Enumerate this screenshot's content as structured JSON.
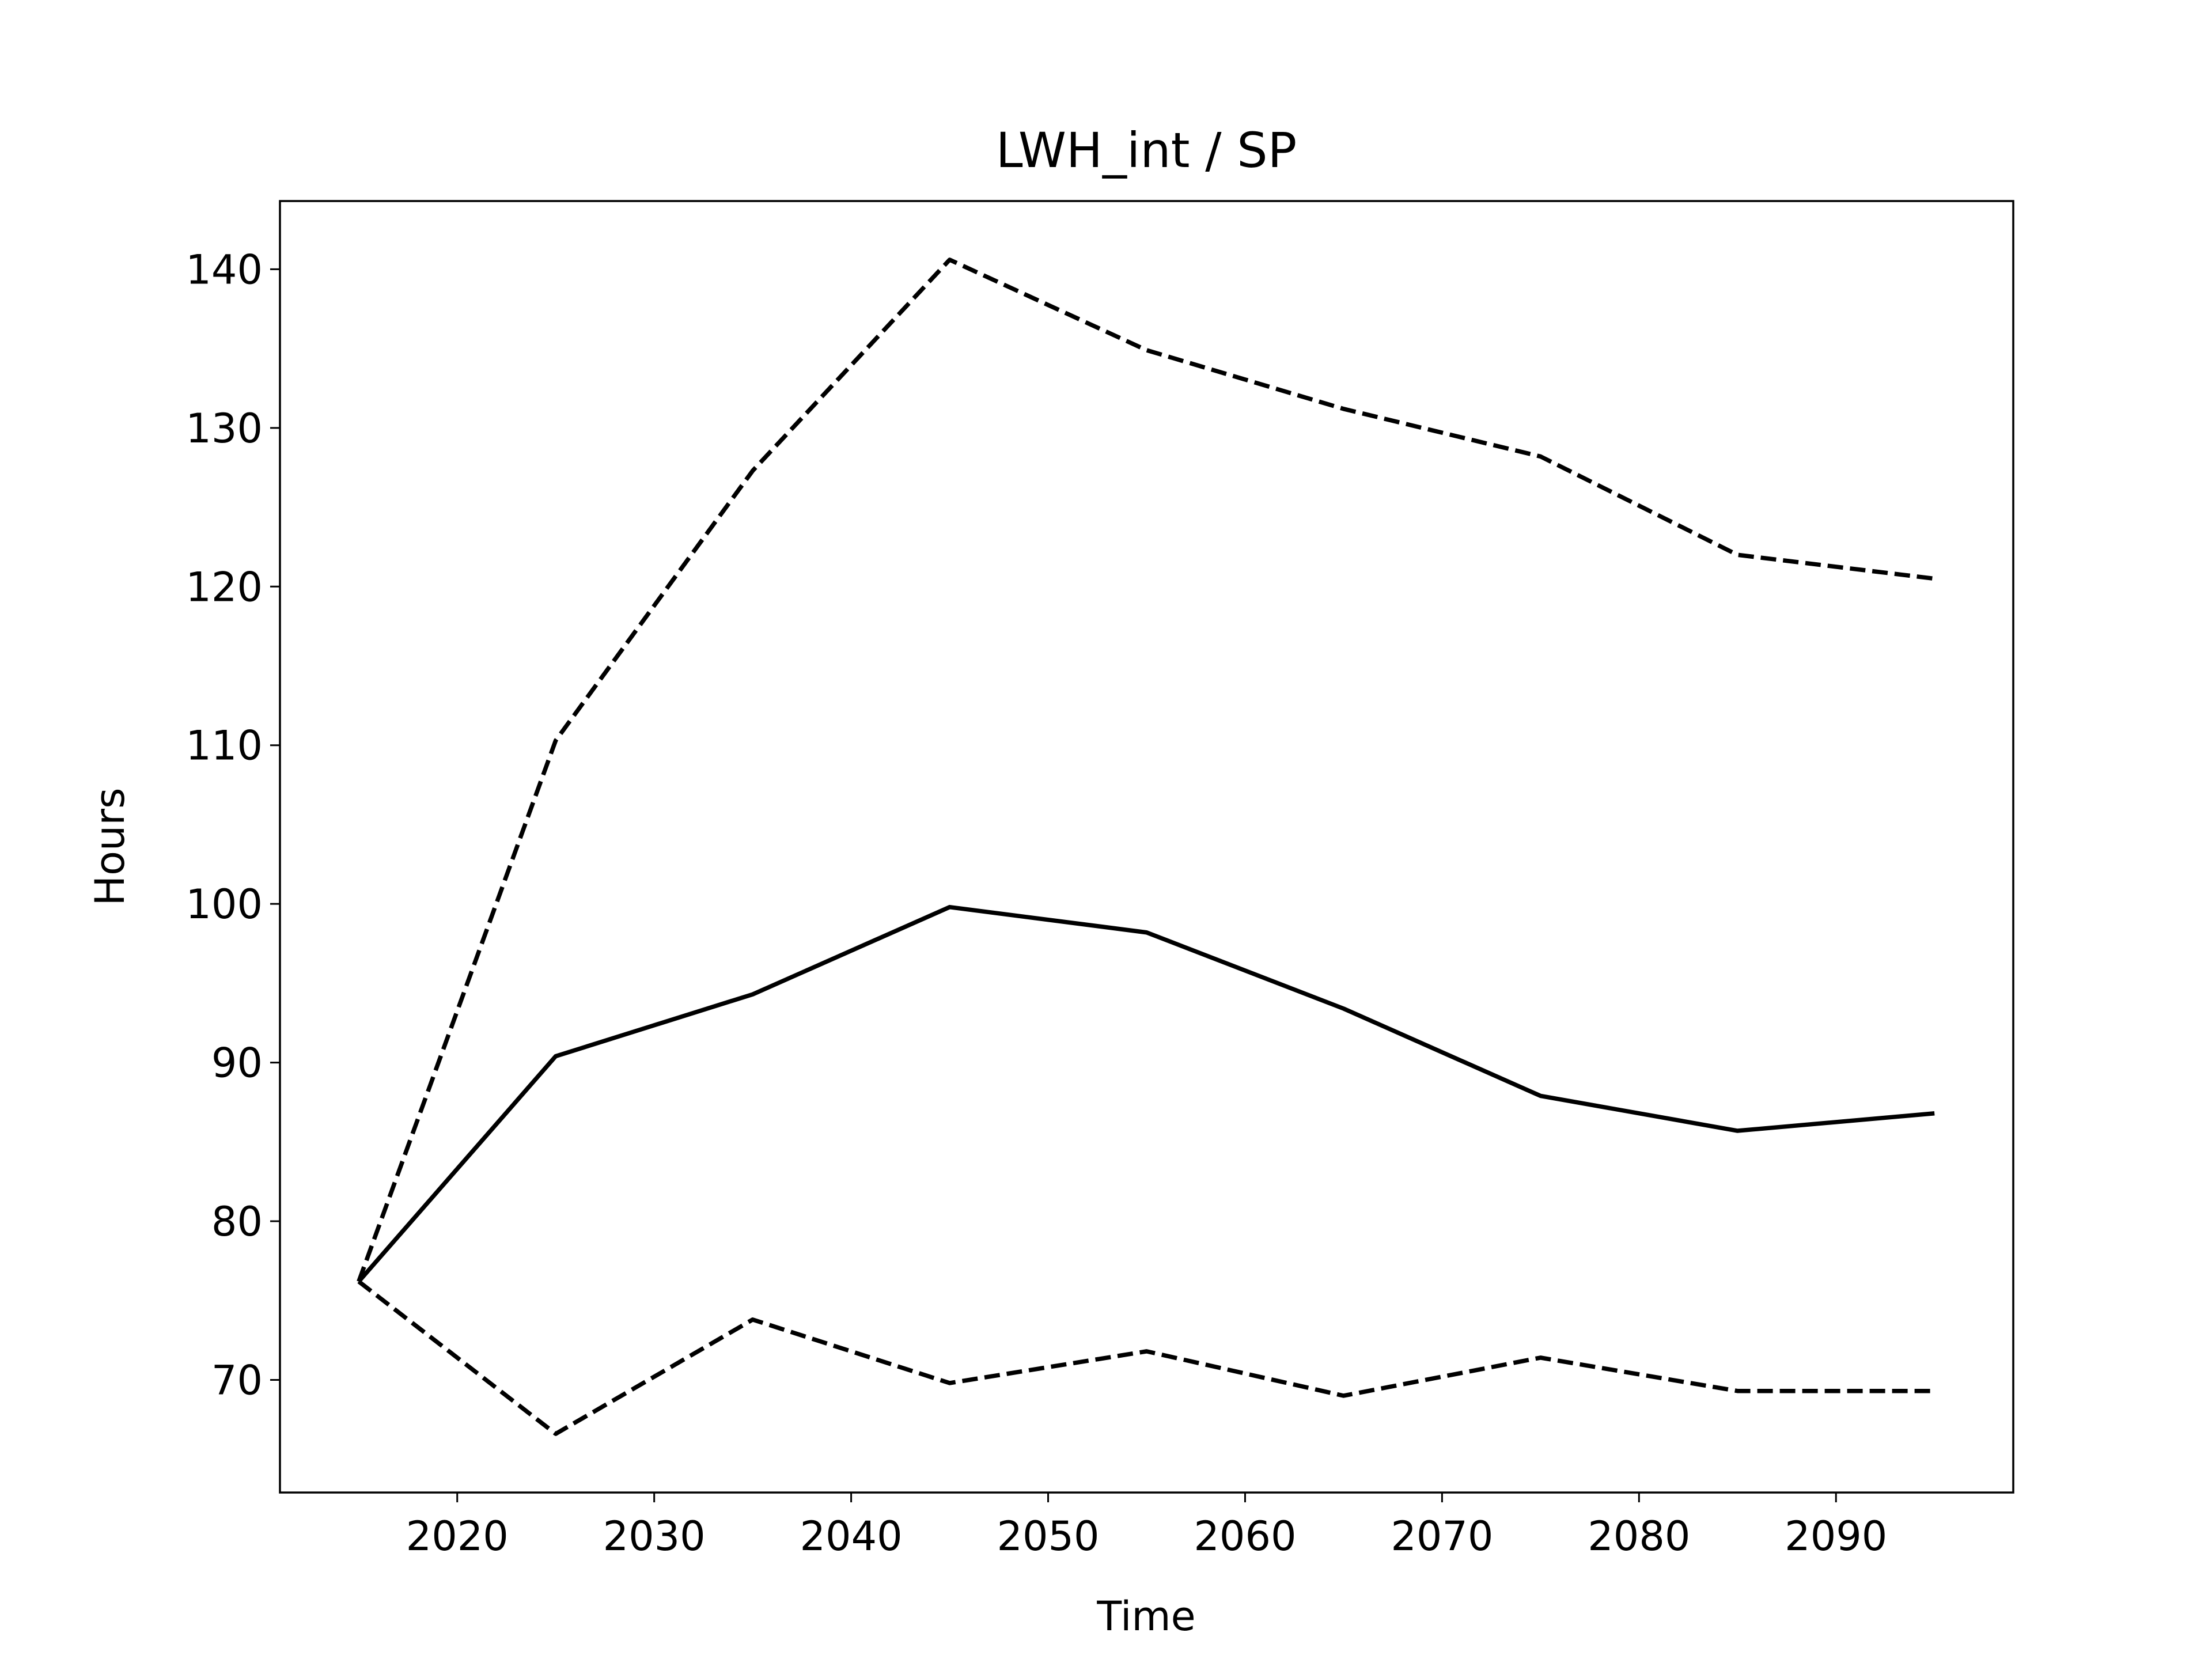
{
  "chart_data": {
    "type": "line",
    "title": "LWH_int / SP",
    "x_label": "Time",
    "y_label": "Hours",
    "x": [
      2015,
      2025,
      2035,
      2045,
      2055,
      2065,
      2075,
      2085,
      2095
    ],
    "series": [
      {
        "color": "#000000",
        "dashed": false,
        "values": [
          76.2,
          90.4,
          94.3,
          99.8,
          98.2,
          93.4,
          87.9,
          85.7,
          86.8
        ]
      },
      {
        "color": "#000000",
        "dashed": true,
        "values": [
          76.2,
          110.3,
          127.3,
          140.6,
          134.9,
          131.2,
          128.2,
          122.0,
          120.5
        ]
      },
      {
        "color": "#000000",
        "dashed": true,
        "values": [
          76.2,
          66.6,
          73.8,
          69.8,
          71.8,
          69.0,
          71.4,
          69.3,
          69.3
        ]
      }
    ],
    "xlim": [
      2011,
      2099
    ],
    "xticks": [
      2020,
      2030,
      2040,
      2050,
      2060,
      2070,
      2080,
      2090
    ],
    "ylim": [
      62.9,
      144.3
    ],
    "yticks": [
      70,
      80,
      90,
      100,
      110,
      120,
      130,
      140
    ],
    "grid": false
  }
}
